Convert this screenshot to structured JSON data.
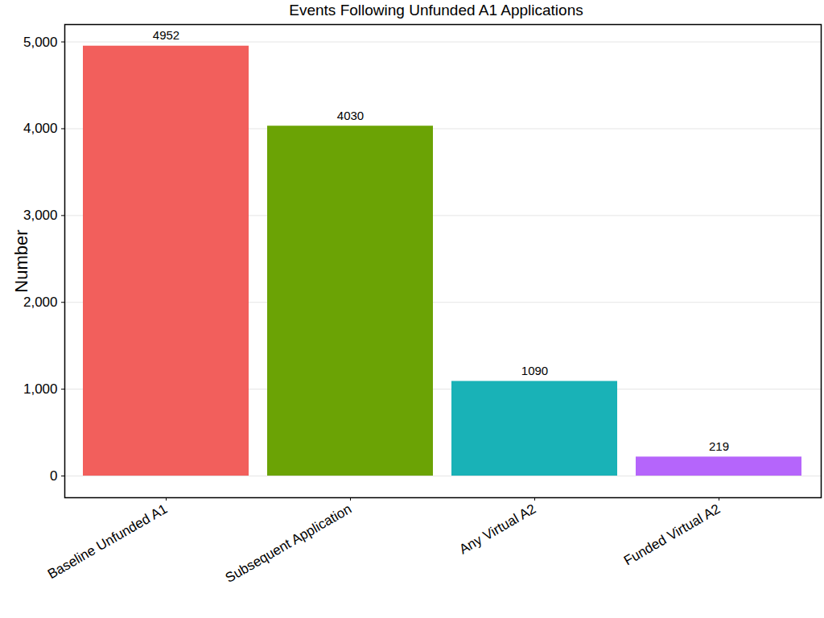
{
  "chart_data": {
    "type": "bar",
    "title": "Events Following Unfunded A1 Applications",
    "y_label": "Number",
    "categories": [
      "Baseline Unfunded A1",
      "Subsequent Application",
      "Any Virtual A2",
      "Funded Virtual A2"
    ],
    "values": [
      4952,
      4030,
      1090,
      219
    ],
    "colors": [
      "#f25f5c",
      "#6ba305",
      "#19b2b7",
      "#b565fb"
    ],
    "ylim": [
      -250,
      5200
    ],
    "yticks": [
      0,
      1000,
      2000,
      3000,
      4000,
      5000
    ],
    "grid": true,
    "data_labels": true
  }
}
